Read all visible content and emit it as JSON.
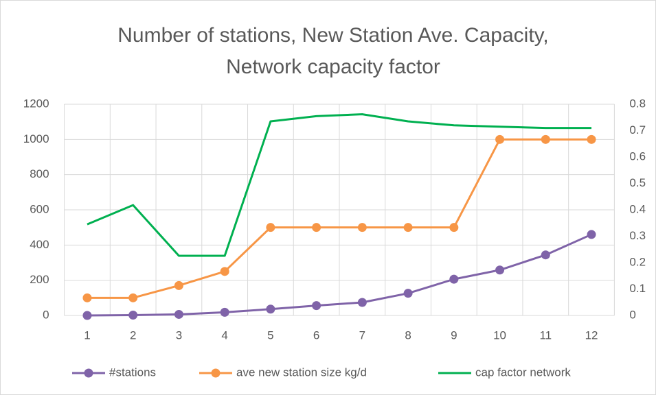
{
  "chart_data": {
    "type": "line",
    "title": [
      "Number of stations, New Station Ave. Capacity,",
      "Network capacity factor"
    ],
    "categories": [
      1,
      2,
      3,
      4,
      5,
      6,
      7,
      8,
      9,
      10,
      11,
      12
    ],
    "series": [
      {
        "name": "#stations",
        "color": "#7f63a8",
        "marker": true,
        "values": [
          0,
          2,
          6,
          18,
          36,
          56,
          74,
          126,
          206,
          258,
          344,
          460
        ]
      },
      {
        "name": "ave new station size kg/d",
        "color": "#f79646",
        "marker": true,
        "values": [
          100,
          100,
          170,
          250,
          500,
          500,
          500,
          500,
          500,
          1000,
          1000,
          1000
        ]
      },
      {
        "name": "cap factor network",
        "color": "#00b050",
        "marker": false,
        "axis": "y2",
        "values": [
          0.345,
          0.418,
          0.226,
          0.226,
          0.735,
          0.755,
          0.762,
          0.735,
          0.72,
          0.715,
          0.71,
          0.71
        ]
      }
    ],
    "ylim": [
      0,
      1200
    ],
    "yticks": [
      0,
      200,
      400,
      600,
      800,
      1000,
      1200
    ],
    "y2lim": [
      0,
      0.8
    ],
    "y2ticks": [
      0,
      0.1,
      0.2,
      0.3,
      0.4,
      0.5,
      0.6,
      0.7,
      0.8
    ],
    "grid": true,
    "legend": "bottom"
  }
}
